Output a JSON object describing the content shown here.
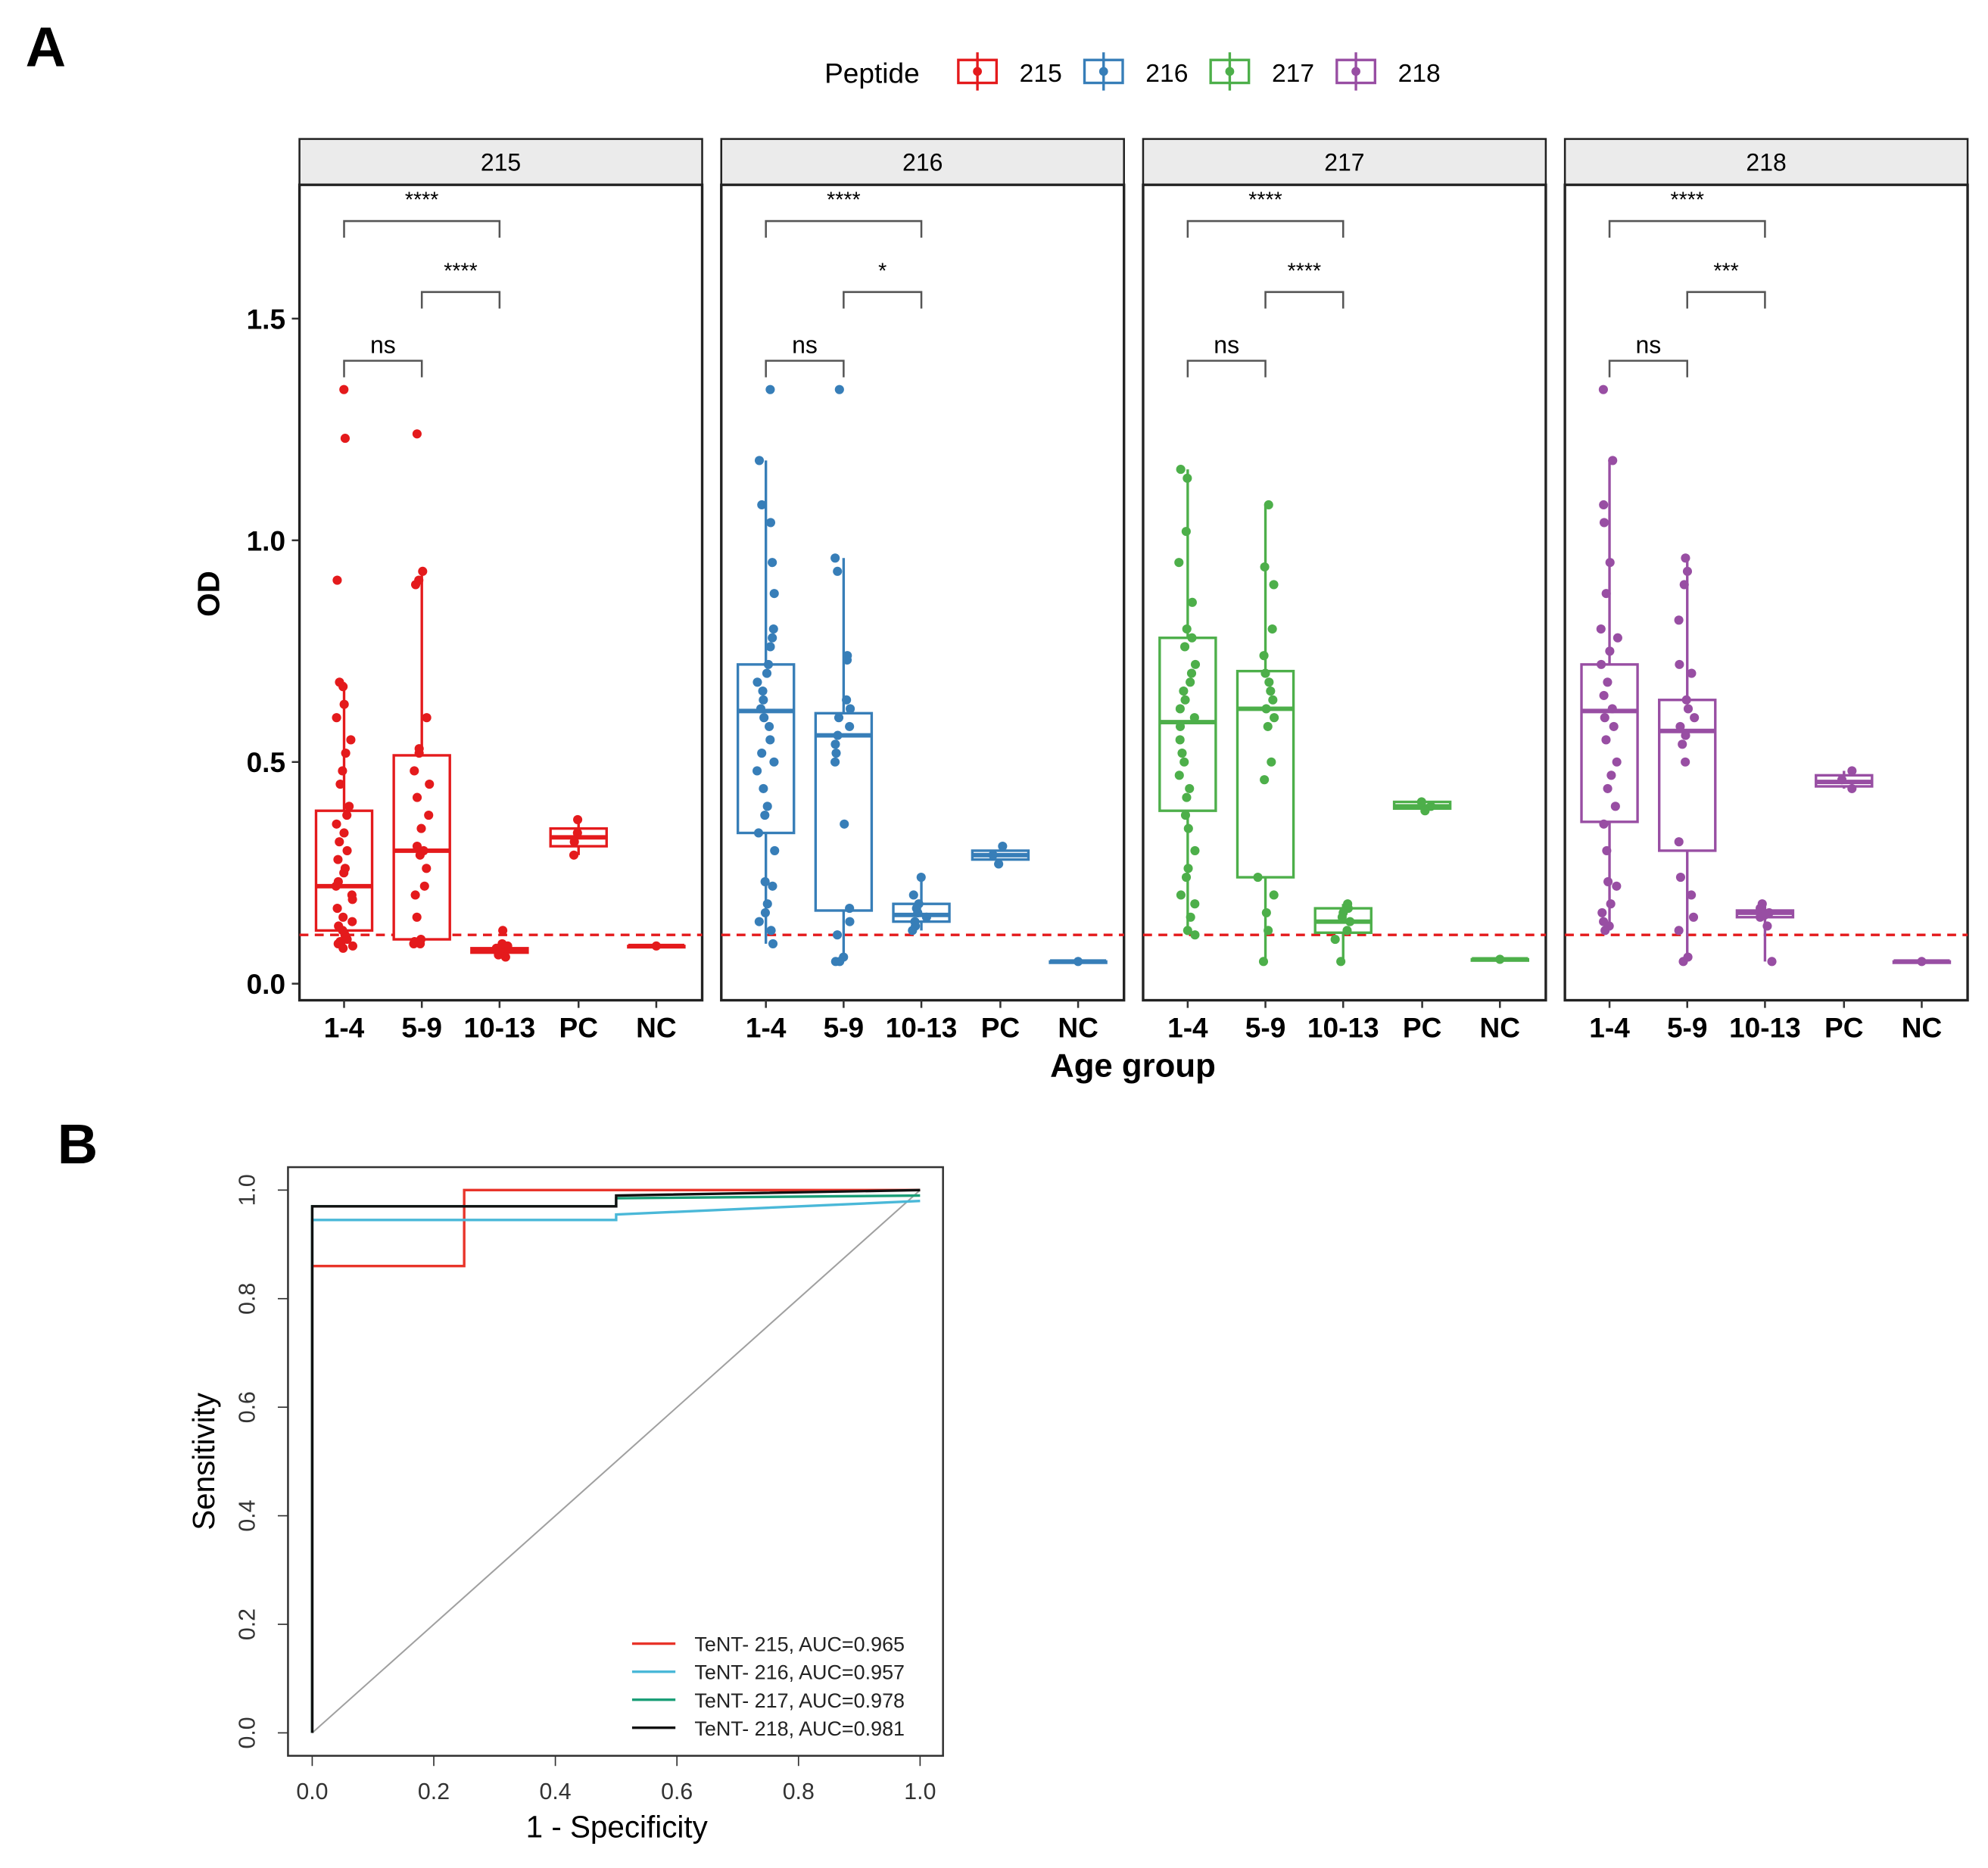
{
  "panel_labels": {
    "a": "A",
    "b": "B"
  },
  "chart_data": [
    {
      "type": "box",
      "panel": "A",
      "legend": {
        "title": "Peptide",
        "placement": "top",
        "entries": [
          "215",
          "216",
          "217",
          "218"
        ]
      },
      "ylabel": "OD",
      "xlabel": "Age group",
      "ylim": [
        -0.04,
        1.81
      ],
      "yticks": [
        "0.0",
        "0.5",
        "1.0",
        "1.5"
      ],
      "ytick_values": [
        0,
        0.5,
        1.0,
        1.5
      ],
      "categories": [
        "1-4",
        "5-9",
        "10-13",
        "PC",
        "NC"
      ],
      "cutoff": 0.11,
      "colors": {
        "215": "#e41a1c",
        "216": "#377eb8",
        "217": "#4daf4a",
        "218": "#984ea3",
        "cutoff": "#e41a1c"
      },
      "facets": [
        {
          "name": "215",
          "comparisons": [
            {
              "from": 0,
              "to": 2,
              "label": "****",
              "y": 1.72
            },
            {
              "from": 1,
              "to": 2,
              "label": "****",
              "y": 1.56
            },
            {
              "from": 0,
              "to": 1,
              "label": "ns",
              "y": 1.405
            }
          ],
          "boxes": [
            {
              "q1": 0.12,
              "median": 0.22,
              "q3": 0.39,
              "lo": 0.08,
              "hi": 0.68,
              "points": [
                1.34,
                1.23,
                0.91,
                0.68,
                0.67,
                0.63,
                0.6,
                0.55,
                0.52,
                0.48,
                0.45,
                0.4,
                0.38,
                0.36,
                0.34,
                0.32,
                0.3,
                0.28,
                0.26,
                0.25,
                0.23,
                0.22,
                0.2,
                0.19,
                0.17,
                0.15,
                0.14,
                0.13,
                0.12,
                0.11,
                0.1,
                0.095,
                0.09,
                0.085,
                0.08
              ]
            },
            {
              "q1": 0.1,
              "median": 0.3,
              "q3": 0.515,
              "lo": 0.09,
              "hi": 0.93,
              "points": [
                1.24,
                0.93,
                0.91,
                0.9,
                0.6,
                0.53,
                0.52,
                0.48,
                0.45,
                0.42,
                0.38,
                0.35,
                0.31,
                0.3,
                0.29,
                0.26,
                0.22,
                0.2,
                0.15,
                0.1,
                0.095,
                0.09,
                0.09
              ]
            },
            {
              "q1": 0.07,
              "median": 0.075,
              "q3": 0.08,
              "lo": 0.06,
              "hi": 0.09,
              "points": [
                0.12,
                0.09,
                0.085,
                0.08,
                0.075,
                0.07,
                0.065,
                0.06
              ]
            },
            {
              "q1": 0.31,
              "median": 0.33,
              "q3": 0.35,
              "lo": 0.29,
              "hi": 0.37,
              "points": [
                0.37,
                0.34,
                0.32,
                0.29
              ]
            },
            {
              "q1": 0.085,
              "median": 0.085,
              "q3": 0.085,
              "lo": 0.085,
              "hi": 0.085,
              "points": [
                0.085
              ]
            }
          ]
        },
        {
          "name": "216",
          "comparisons": [
            {
              "from": 0,
              "to": 2,
              "label": "****",
              "y": 1.72
            },
            {
              "from": 1,
              "to": 2,
              "label": "*",
              "y": 1.56
            },
            {
              "from": 0,
              "to": 1,
              "label": "ns",
              "y": 1.405
            }
          ],
          "boxes": [
            {
              "q1": 0.34,
              "median": 0.615,
              "q3": 0.72,
              "lo": 0.09,
              "hi": 1.18,
              "points": [
                1.34,
                1.18,
                1.08,
                1.04,
                0.95,
                0.88,
                0.8,
                0.78,
                0.76,
                0.72,
                0.7,
                0.68,
                0.66,
                0.64,
                0.62,
                0.6,
                0.58,
                0.55,
                0.52,
                0.5,
                0.48,
                0.44,
                0.4,
                0.38,
                0.34,
                0.3,
                0.23,
                0.22,
                0.18,
                0.16,
                0.14,
                0.12,
                0.09
              ]
            },
            {
              "q1": 0.165,
              "median": 0.56,
              "q3": 0.61,
              "lo": 0.05,
              "hi": 0.96,
              "points": [
                1.34,
                0.96,
                0.93,
                0.74,
                0.73,
                0.64,
                0.62,
                0.6,
                0.58,
                0.56,
                0.54,
                0.52,
                0.5,
                0.36,
                0.17,
                0.14,
                0.11,
                0.06,
                0.05,
                0.05
              ]
            },
            {
              "q1": 0.14,
              "median": 0.155,
              "q3": 0.18,
              "lo": 0.12,
              "hi": 0.24,
              "points": [
                0.24,
                0.2,
                0.18,
                0.17,
                0.16,
                0.15,
                0.14,
                0.13,
                0.12
              ]
            },
            {
              "q1": 0.28,
              "median": 0.29,
              "q3": 0.3,
              "lo": 0.27,
              "hi": 0.31,
              "points": [
                0.31,
                0.29,
                0.27
              ]
            },
            {
              "q1": 0.05,
              "median": 0.05,
              "q3": 0.05,
              "lo": 0.05,
              "hi": 0.05,
              "points": [
                0.05
              ]
            }
          ]
        },
        {
          "name": "217",
          "comparisons": [
            {
              "from": 0,
              "to": 2,
              "label": "****",
              "y": 1.72
            },
            {
              "from": 1,
              "to": 2,
              "label": "****",
              "y": 1.56
            },
            {
              "from": 0,
              "to": 1,
              "label": "ns",
              "y": 1.405
            }
          ],
          "boxes": [
            {
              "q1": 0.39,
              "median": 0.59,
              "q3": 0.78,
              "lo": 0.11,
              "hi": 1.16,
              "points": [
                1.16,
                1.14,
                1.02,
                0.95,
                0.86,
                0.8,
                0.78,
                0.76,
                0.72,
                0.7,
                0.68,
                0.66,
                0.64,
                0.62,
                0.6,
                0.58,
                0.55,
                0.52,
                0.5,
                0.47,
                0.44,
                0.42,
                0.38,
                0.35,
                0.3,
                0.26,
                0.24,
                0.2,
                0.18,
                0.15,
                0.12,
                0.11
              ]
            },
            {
              "q1": 0.24,
              "median": 0.62,
              "q3": 0.705,
              "lo": 0.05,
              "hi": 1.08,
              "points": [
                1.08,
                0.94,
                0.9,
                0.8,
                0.74,
                0.7,
                0.68,
                0.66,
                0.64,
                0.62,
                0.6,
                0.58,
                0.5,
                0.46,
                0.24,
                0.2,
                0.16,
                0.12,
                0.05
              ]
            },
            {
              "q1": 0.115,
              "median": 0.14,
              "q3": 0.17,
              "lo": 0.05,
              "hi": 0.18,
              "points": [
                0.18,
                0.17,
                0.16,
                0.15,
                0.14,
                0.12,
                0.1,
                0.05
              ]
            },
            {
              "q1": 0.395,
              "median": 0.4,
              "q3": 0.41,
              "lo": 0.39,
              "hi": 0.415,
              "points": [
                0.41,
                0.4,
                0.39
              ]
            },
            {
              "q1": 0.055,
              "median": 0.055,
              "q3": 0.055,
              "lo": 0.055,
              "hi": 0.055,
              "points": [
                0.055
              ]
            }
          ]
        },
        {
          "name": "218",
          "comparisons": [
            {
              "from": 0,
              "to": 2,
              "label": "****",
              "y": 1.72
            },
            {
              "from": 1,
              "to": 2,
              "label": "***",
              "y": 1.56
            },
            {
              "from": 0,
              "to": 1,
              "label": "ns",
              "y": 1.405
            }
          ],
          "boxes": [
            {
              "q1": 0.365,
              "median": 0.615,
              "q3": 0.72,
              "lo": 0.12,
              "hi": 1.18,
              "points": [
                1.34,
                1.18,
                1.08,
                1.04,
                0.95,
                0.88,
                0.8,
                0.78,
                0.75,
                0.72,
                0.68,
                0.65,
                0.62,
                0.6,
                0.58,
                0.55,
                0.5,
                0.47,
                0.44,
                0.4,
                0.36,
                0.3,
                0.23,
                0.22,
                0.18,
                0.16,
                0.14,
                0.13,
                0.12
              ]
            },
            {
              "q1": 0.3,
              "median": 0.57,
              "q3": 0.64,
              "lo": 0.05,
              "hi": 0.96,
              "points": [
                0.96,
                0.93,
                0.9,
                0.82,
                0.72,
                0.7,
                0.64,
                0.62,
                0.6,
                0.58,
                0.56,
                0.54,
                0.5,
                0.32,
                0.24,
                0.2,
                0.15,
                0.12,
                0.06,
                0.05
              ]
            },
            {
              "q1": 0.15,
              "median": 0.16,
              "q3": 0.165,
              "lo": 0.05,
              "hi": 0.18,
              "points": [
                0.18,
                0.17,
                0.16,
                0.155,
                0.15,
                0.13,
                0.05
              ]
            },
            {
              "q1": 0.445,
              "median": 0.455,
              "q3": 0.47,
              "lo": 0.44,
              "hi": 0.48,
              "points": [
                0.48,
                0.46,
                0.44
              ]
            },
            {
              "q1": 0.05,
              "median": 0.05,
              "q3": 0.05,
              "lo": 0.05,
              "hi": 0.05,
              "points": [
                0.05
              ]
            }
          ]
        }
      ]
    },
    {
      "type": "line",
      "panel": "B",
      "xlabel": "1 -  Specificity",
      "ylabel": "Sensitivity",
      "xlim": [
        -0.04,
        1.04
      ],
      "ylim": [
        -0.04,
        1.04
      ],
      "xticks": [
        "0.0",
        "0.2",
        "0.4",
        "0.6",
        "0.8",
        "1.0"
      ],
      "yticks": [
        "0.0",
        "0.2",
        "0.4",
        "0.6",
        "0.8",
        "1.0"
      ],
      "tick_values": [
        0,
        0.2,
        0.4,
        0.6,
        0.8,
        1.0
      ],
      "legend_placement": "bottom-right",
      "diagonal_color": "#a0a0a0",
      "series": [
        {
          "name": "TeNT- 215, AUC=0.965",
          "color": "#e8342a",
          "x": [
            0,
            0,
            0.25,
            0.25,
            1
          ],
          "y": [
            0,
            0.86,
            0.86,
            1.0,
            1.0
          ]
        },
        {
          "name": "TeNT- 216, AUC=0.957",
          "color": "#4ab8d8",
          "x": [
            0,
            0,
            0.5,
            0.5,
            1
          ],
          "y": [
            0,
            0.945,
            0.945,
            0.955,
            0.98
          ]
        },
        {
          "name": "TeNT- 217, AUC=0.978",
          "color": "#1a9e77",
          "x": [
            0,
            0,
            0.5,
            0.5,
            1
          ],
          "y": [
            0,
            0.97,
            0.97,
            0.985,
            0.99
          ]
        },
        {
          "name": "TeNT- 218, AUC=0.981",
          "color": "#111111",
          "x": [
            0,
            0,
            0.5,
            0.5,
            1
          ],
          "y": [
            0,
            0.97,
            0.97,
            0.99,
            1.0
          ]
        }
      ]
    }
  ]
}
